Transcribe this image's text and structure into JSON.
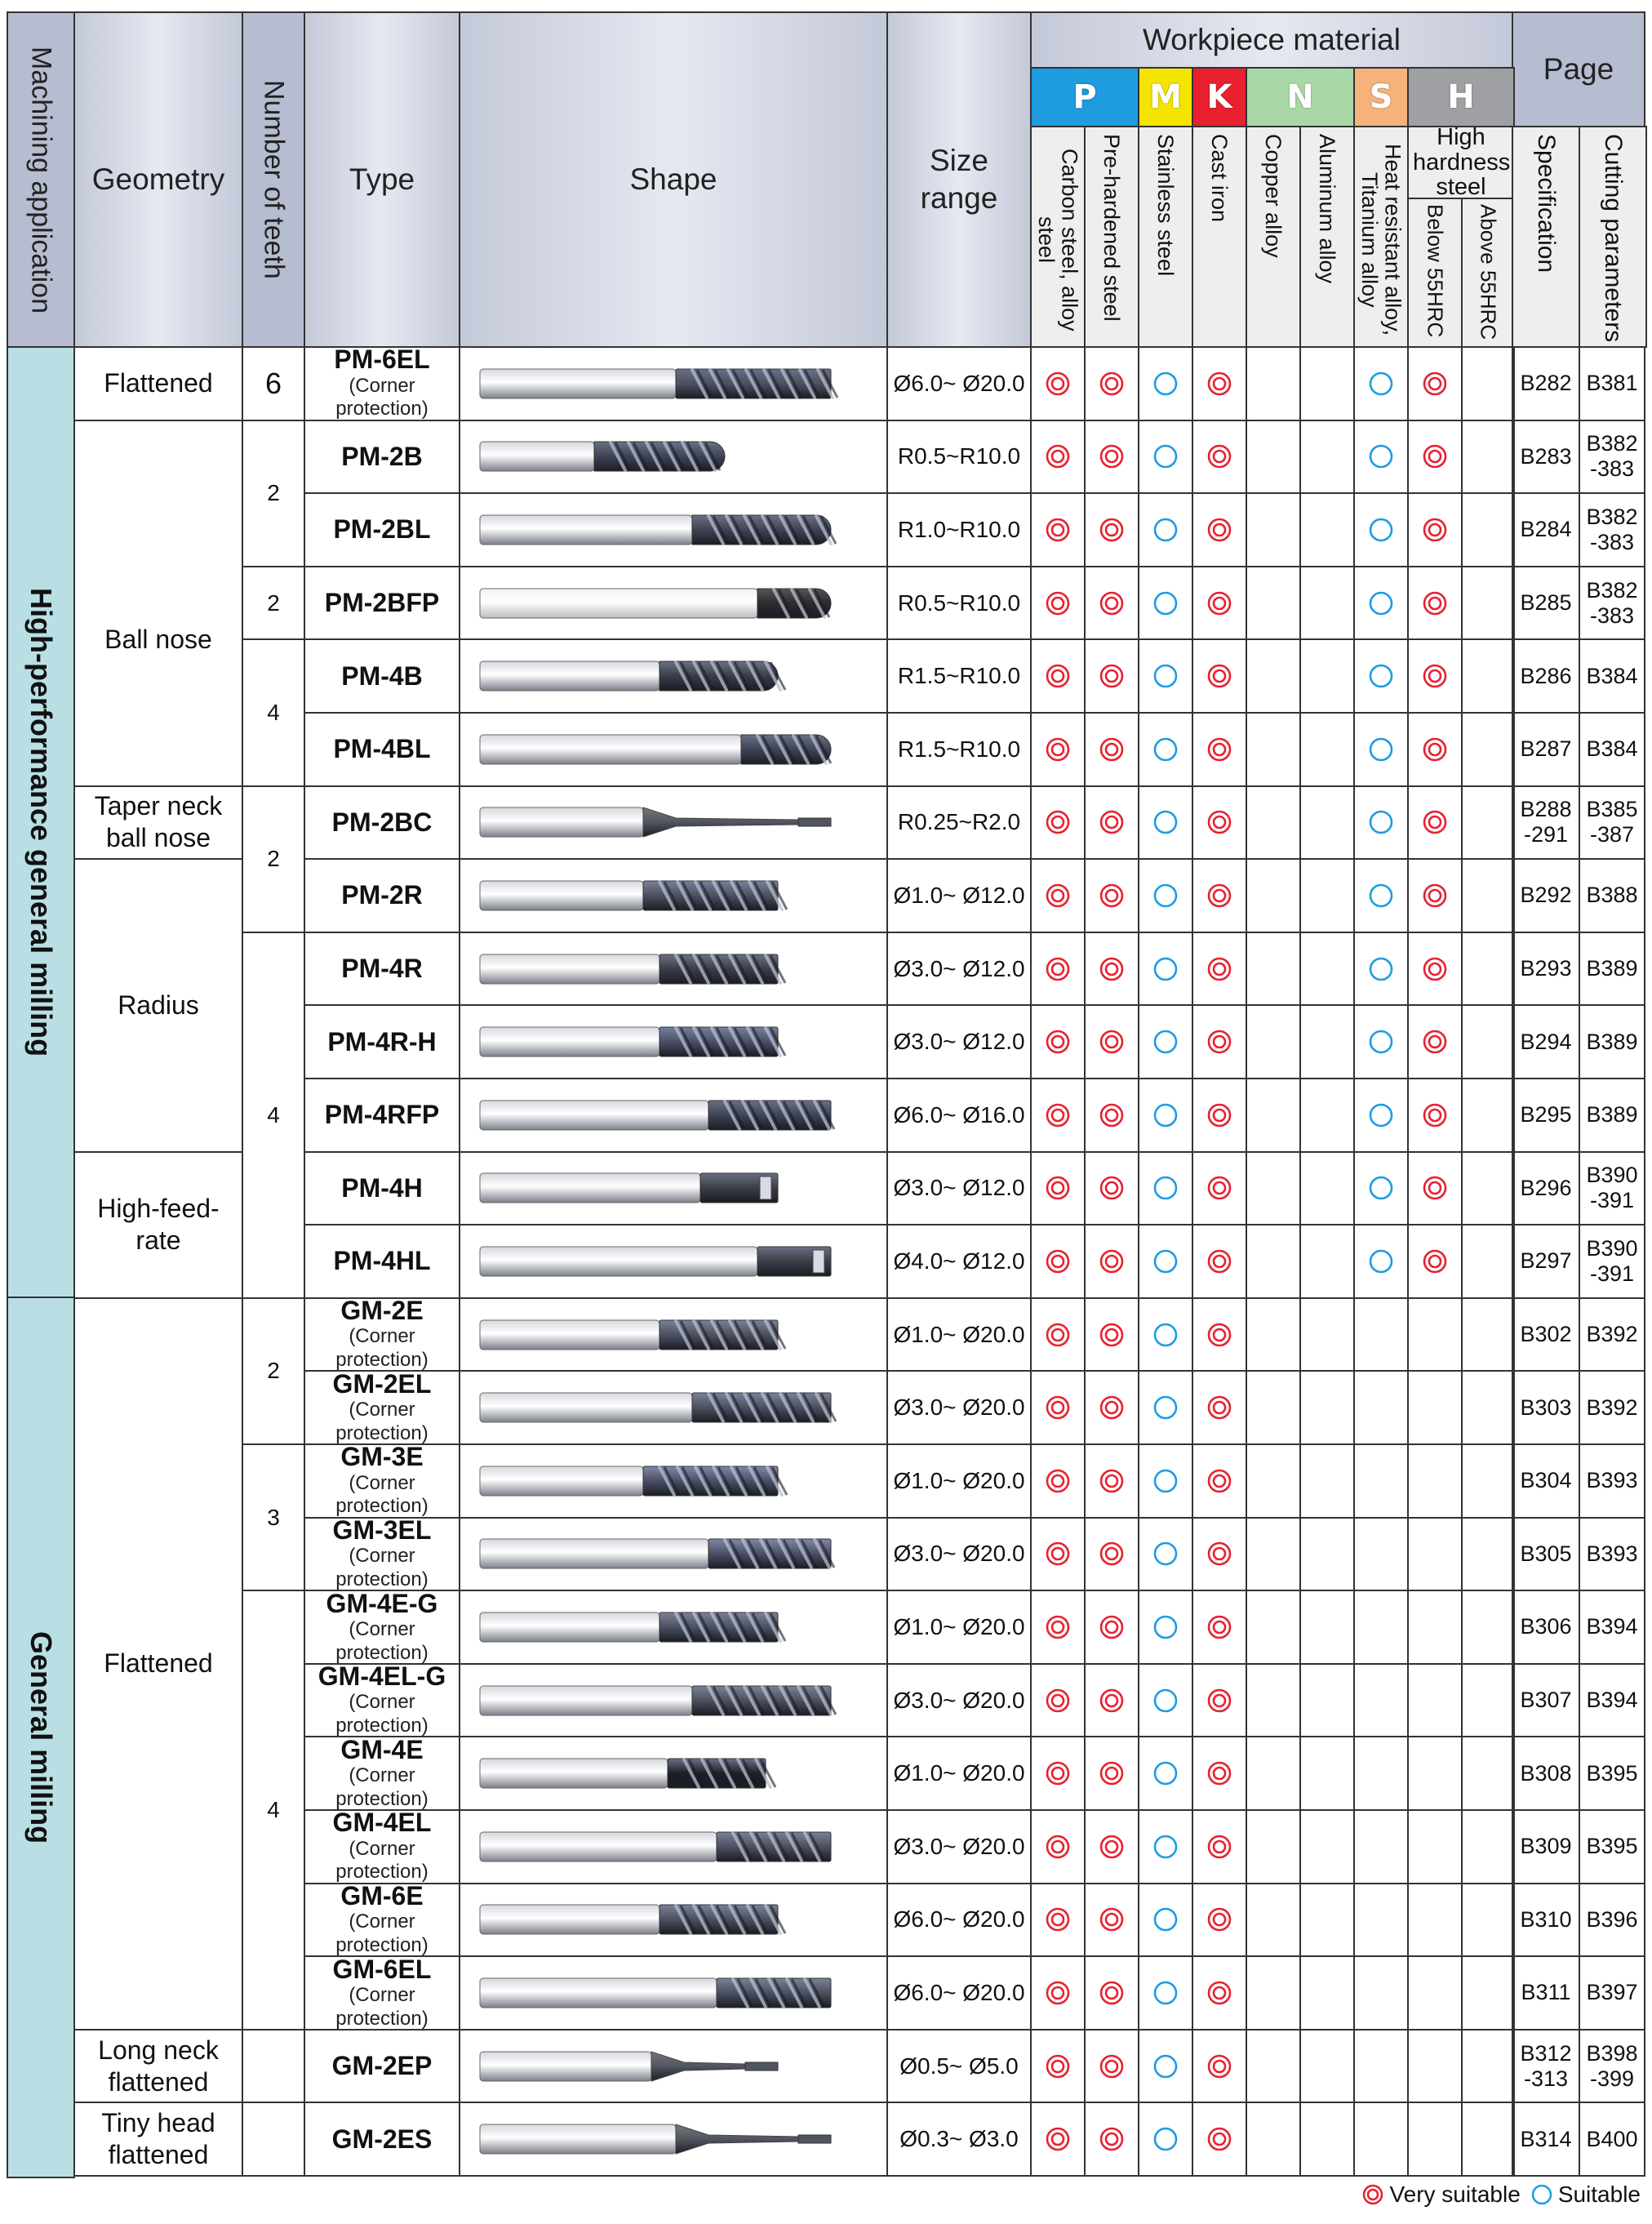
{
  "header": {
    "application": "Machining application",
    "geometry": "Geometry",
    "teeth": "Number of teeth",
    "type": "Type",
    "shape": "Shape",
    "size": "Size range",
    "workpiece": "Workpiece material",
    "page": "Page",
    "materials": [
      {
        "letter": "P",
        "color": "#1f9be0"
      },
      {
        "letter": "M",
        "color": "#f4e400"
      },
      {
        "letter": "K",
        "color": "#e8202f"
      },
      {
        "letter": "N",
        "color": "#a9d8a6"
      },
      {
        "letter": "S",
        "color": "#f5b27a"
      },
      {
        "letter": "H",
        "color": "#9ea0a3"
      }
    ],
    "material_columns": [
      "Carbon steel, alloy steel",
      "Pre-hardened steel",
      "Stainless steel",
      "Cast iron",
      "Copper alloy",
      "Aluminum alloy",
      "Heat resistant alloy, Titanium alloy",
      "Below 55HRC",
      "Above 55HRC"
    ],
    "high_hardness": "High hardness steel",
    "spec": "Specification",
    "cutting": "Cutting parameters"
  },
  "applications": [
    {
      "label": "High-performance general milling"
    },
    {
      "label": "General milling"
    }
  ],
  "geometries": [
    {
      "label": "Flattened"
    },
    {
      "label": "Ball nose"
    },
    {
      "label": "Taper neck ball nose"
    },
    {
      "label": "Radius"
    },
    {
      "label": "High-feed-rate"
    },
    {
      "label": "Flattened"
    },
    {
      "label": "Long neck flattened"
    },
    {
      "label": "Tiny head flattened"
    }
  ],
  "teeth_groups": [
    {
      "value": "6"
    },
    {
      "value": "2"
    },
    {
      "value": "2"
    },
    {
      "value": "4"
    },
    {
      "value": "2"
    },
    {
      "value": "4"
    },
    {
      "value": "2"
    },
    {
      "value": "3"
    },
    {
      "value": "4"
    },
    {
      "value": ""
    },
    {
      "value": ""
    }
  ],
  "rows": [
    {
      "type": "PM-6EL",
      "note": "(Corner protection)",
      "size": "Ø6.0~ Ø20.0",
      "marks": "VVSV--SV-",
      "spec": "B282",
      "cut": "B381"
    },
    {
      "type": "PM-2B",
      "note": "",
      "size": "R0.5~R10.0",
      "marks": "VVSV--SV-",
      "spec": "B283",
      "cut": "B382 -383"
    },
    {
      "type": "PM-2BL",
      "note": "",
      "size": "R1.0~R10.0",
      "marks": "VVSV--SV-",
      "spec": "B284",
      "cut": "B382 -383"
    },
    {
      "type": "PM-2BFP",
      "note": "",
      "size": "R0.5~R10.0",
      "marks": "VVSV--SV-",
      "spec": "B285",
      "cut": "B382 -383"
    },
    {
      "type": "PM-4B",
      "note": "",
      "size": "R1.5~R10.0",
      "marks": "VVSV--SV-",
      "spec": "B286",
      "cut": "B384"
    },
    {
      "type": "PM-4BL",
      "note": "",
      "size": "R1.5~R10.0",
      "marks": "VVSV--SV-",
      "spec": "B287",
      "cut": "B384"
    },
    {
      "type": "PM-2BC",
      "note": "",
      "size": "R0.25~R2.0",
      "marks": "VVSV--SV-",
      "spec": "B288 -291",
      "cut": "B385 -387"
    },
    {
      "type": "PM-2R",
      "note": "",
      "size": "Ø1.0~ Ø12.0",
      "marks": "VVSV--SV-",
      "spec": "B292",
      "cut": "B388"
    },
    {
      "type": "PM-4R",
      "note": "",
      "size": "Ø3.0~ Ø12.0",
      "marks": "VVSV--SV-",
      "spec": "B293",
      "cut": "B389"
    },
    {
      "type": "PM-4R-H",
      "note": "",
      "size": "Ø3.0~ Ø12.0",
      "marks": "VVSV--SV-",
      "spec": "B294",
      "cut": "B389"
    },
    {
      "type": "PM-4RFP",
      "note": "",
      "size": "Ø6.0~ Ø16.0",
      "marks": "VVSV--SV-",
      "spec": "B295",
      "cut": "B389"
    },
    {
      "type": "PM-4H",
      "note": "",
      "size": "Ø3.0~ Ø12.0",
      "marks": "VVSV--SV-",
      "spec": "B296",
      "cut": "B390 -391"
    },
    {
      "type": "PM-4HL",
      "note": "",
      "size": "Ø4.0~ Ø12.0",
      "marks": "VVSV--SV-",
      "spec": "B297",
      "cut": "B390 -391"
    },
    {
      "type": "GM-2E",
      "note": "(Corner protection)",
      "size": "Ø1.0~ Ø20.0",
      "marks": "VVSV-----",
      "spec": "B302",
      "cut": "B392"
    },
    {
      "type": "GM-2EL",
      "note": "(Corner protection)",
      "size": "Ø3.0~ Ø20.0",
      "marks": "VVSV-----",
      "spec": "B303",
      "cut": "B392"
    },
    {
      "type": "GM-3E",
      "note": "(Corner protection)",
      "size": "Ø1.0~ Ø20.0",
      "marks": "VVSV-----",
      "spec": "B304",
      "cut": "B393"
    },
    {
      "type": "GM-3EL",
      "note": "(Corner protection)",
      "size": "Ø3.0~ Ø20.0",
      "marks": "VVSV-----",
      "spec": "B305",
      "cut": "B393"
    },
    {
      "type": "GM-4E-G",
      "note": "(Corner protection)",
      "size": "Ø1.0~ Ø20.0",
      "marks": "VVSV-----",
      "spec": "B306",
      "cut": "B394"
    },
    {
      "type": "GM-4EL-G",
      "note": "(Corner protection)",
      "size": "Ø3.0~ Ø20.0",
      "marks": "VVSV-----",
      "spec": "B307",
      "cut": "B394"
    },
    {
      "type": "GM-4E",
      "note": "(Corner protection)",
      "size": "Ø1.0~ Ø20.0",
      "marks": "VVSV-----",
      "spec": "B308",
      "cut": "B395"
    },
    {
      "type": "GM-4EL",
      "note": "(Corner protection)",
      "size": "Ø3.0~ Ø20.0",
      "marks": "VVSV-----",
      "spec": "B309",
      "cut": "B395"
    },
    {
      "type": "GM-6E",
      "note": "(Corner protection)",
      "size": "Ø6.0~ Ø20.0",
      "marks": "VVSV-----",
      "spec": "B310",
      "cut": "B396"
    },
    {
      "type": "GM-6EL",
      "note": "(Corner protection)",
      "size": "Ø6.0~ Ø20.0",
      "marks": "VVSV-----",
      "spec": "B311",
      "cut": "B397"
    },
    {
      "type": "GM-2EP",
      "note": "",
      "size": "Ø0.5~ Ø5.0",
      "marks": "VVSV-----",
      "spec": "B312 -313",
      "cut": "B398 -399"
    },
    {
      "type": "GM-2ES",
      "note": "",
      "size": "Ø0.3~ Ø3.0",
      "marks": "VVSV-----",
      "spec": "B314",
      "cut": "B400"
    }
  ],
  "legend": {
    "very": "Very suitable",
    "suit": "Suitable",
    "very_color": "#e8202f",
    "suit_color": "#1f9be0"
  }
}
